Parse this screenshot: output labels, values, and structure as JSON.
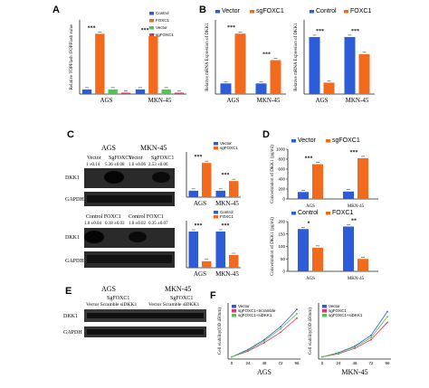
{
  "panels": {
    "A": "A",
    "B": "B",
    "C": "C",
    "D": "D",
    "E": "E",
    "F": "F"
  },
  "chart_data": [
    {
      "id": "A",
      "type": "bar",
      "ylabel": "Relative TOPFlash /FOPFlash value",
      "categories": [
        "AGS",
        "MKN-45"
      ],
      "series": [
        {
          "name": "Control",
          "values": [
            1.0,
            1.0
          ],
          "color": "#2e5bd8"
        },
        {
          "name": "FOXC1",
          "values": [
            13.0,
            12.5
          ],
          "color": "#f26b1d"
        },
        {
          "name": "Vector",
          "values": [
            1.0,
            1.0
          ],
          "color": "#4cc94c"
        },
        {
          "name": "sgFOXC1",
          "values": [
            0.3,
            0.3
          ],
          "color": "#e8336b"
        }
      ],
      "ylim": [
        0,
        16
      ],
      "significance": [
        "***",
        "***",
        "***",
        "***"
      ]
    },
    {
      "id": "B-left",
      "type": "bar",
      "ylabel": "Relative mRNA Expression of DKK1",
      "categories": [
        "AGS",
        "MKN-45"
      ],
      "series": [
        {
          "name": "Vector",
          "values": [
            1.0,
            1.0
          ],
          "color": "#2e5bd8"
        },
        {
          "name": "sgFOXC1",
          "values": [
            5.7,
            3.2
          ],
          "color": "#f26b1d"
        }
      ],
      "ylim": [
        0,
        7
      ],
      "significance": [
        "***",
        "***"
      ]
    },
    {
      "id": "B-right",
      "type": "bar",
      "ylabel": "Relative mRNA Expression of DKK1",
      "categories": [
        "AGS",
        "MKN-45"
      ],
      "series": [
        {
          "name": "Control",
          "values": [
            1.0,
            1.0
          ],
          "color": "#2e5bd8"
        },
        {
          "name": "FOXC1",
          "values": [
            0.2,
            0.7
          ],
          "color": "#f26b1d"
        }
      ],
      "ylim": [
        0,
        1.3
      ],
      "significance": [
        "***",
        "***"
      ]
    },
    {
      "id": "C-top",
      "type": "bar",
      "categories": [
        "AGS",
        "MKN-45"
      ],
      "series": [
        {
          "name": "Vector",
          "values": [
            1.0,
            1.0
          ],
          "color": "#2e5bd8"
        },
        {
          "name": "sgFOXC1",
          "values": [
            5.3,
            2.5
          ],
          "color": "#f26b1d"
        }
      ],
      "ylim": [
        0,
        7
      ],
      "significance": [
        "***",
        "***"
      ]
    },
    {
      "id": "C-bottom",
      "type": "bar",
      "categories": [
        "AGS",
        "MKN-45"
      ],
      "series": [
        {
          "name": "Control",
          "values": [
            1.0,
            1.0
          ],
          "color": "#2e5bd8"
        },
        {
          "name": "FOXC1",
          "values": [
            0.18,
            0.35
          ],
          "color": "#f26b1d"
        }
      ],
      "ylim": [
        0,
        1.3
      ],
      "significance": [
        "***",
        "***"
      ]
    },
    {
      "id": "D-top",
      "type": "bar",
      "ylabel": "Concentration of DKK1 (pg/ml)",
      "categories": [
        "AGS",
        "MKN-45"
      ],
      "series": [
        {
          "name": "Vector",
          "values": [
            140,
            150
          ],
          "color": "#2e5bd8"
        },
        {
          "name": "sgFOXC1",
          "values": [
            700,
            820
          ],
          "color": "#f26b1d"
        }
      ],
      "ylim": [
        0,
        1000
      ],
      "ticks": [
        0,
        200,
        400,
        600,
        800,
        1000
      ],
      "significance": [
        "***",
        "***"
      ]
    },
    {
      "id": "D-bottom",
      "type": "bar",
      "ylabel": "Concentration of DKK1 (pg/ml)",
      "categories": [
        "AGS",
        "MKN-45"
      ],
      "series": [
        {
          "name": "Control",
          "values": [
            170,
            180
          ],
          "color": "#2e5bd8"
        },
        {
          "name": "FOXC1",
          "values": [
            95,
            50
          ],
          "color": "#f26b1d"
        }
      ],
      "ylim": [
        0,
        200
      ],
      "ticks": [
        0,
        50,
        100,
        150,
        200
      ],
      "significance": [
        "*",
        "**"
      ]
    },
    {
      "id": "F-AGS",
      "type": "line",
      "xlabel": "AGS",
      "ylabel": "Cell viability(OD 450nm)",
      "x": [
        0,
        24,
        48,
        72,
        96
      ],
      "series": [
        {
          "name": "Vector",
          "values": [
            0.05,
            0.22,
            0.45,
            0.75,
            1.15
          ],
          "color": "#2e5bd8"
        },
        {
          "name": "sgFOXC1+Scramble",
          "values": [
            0.05,
            0.18,
            0.38,
            0.62,
            0.95
          ],
          "color": "#e8336b"
        },
        {
          "name": "sgFOXC1+siDKK1",
          "values": [
            0.05,
            0.2,
            0.42,
            0.7,
            1.05
          ],
          "color": "#4cc94c"
        }
      ],
      "ylim": [
        0,
        1.3
      ]
    },
    {
      "id": "F-MKN45",
      "type": "line",
      "xlabel": "MKN-45",
      "ylabel": "Cell viability(OD 450nm)",
      "x": [
        0,
        24,
        48,
        72,
        96
      ],
      "series": [
        {
          "name": "Vector",
          "values": [
            0.05,
            0.15,
            0.3,
            0.55,
            1.1
          ],
          "color": "#2e5bd8"
        },
        {
          "name": "sgFOXC1",
          "values": [
            0.05,
            0.12,
            0.25,
            0.45,
            0.85
          ],
          "color": "#e8336b"
        },
        {
          "name": "sgFOXC1+siDKK1",
          "values": [
            0.05,
            0.14,
            0.28,
            0.5,
            0.98
          ],
          "color": "#4cc94c"
        }
      ],
      "ylim": [
        0,
        1.3
      ]
    }
  ],
  "blots": {
    "c_top": {
      "header1": "AGS",
      "header2": "MKN-45",
      "cols1": [
        "Vector",
        "SgFOXC1"
      ],
      "cols2": [
        "Vector",
        "SgFOXC1"
      ],
      "q1": "1 ±0.14",
      "q2": "5.36 ±0.08",
      "q3": "1.0 ±0.06",
      "q4": "2.53 ±0.06",
      "row1": "DKK1",
      "row2": "GAPDH"
    },
    "c_bottom": {
      "cols1": "Control FOXC1",
      "cols2": "Control FOXC1",
      "q1": "1.0 ±0.04",
      "q2": "0.18 ±0.03",
      "q3": "1.0 ±0.02",
      "q4": "0.35 ±0.07",
      "row1": "DKK1",
      "row2": "GAPDH"
    },
    "e": {
      "header1": "AGS",
      "header2": "MKN-45",
      "sub1": "SgFOXC1",
      "sub2": "SgFOXC1",
      "cols1": "Vector Scramble siDKK1",
      "cols2": "Vector Scramble siDKK1",
      "row1": "DKK1",
      "row2": "GAPDH"
    }
  }
}
